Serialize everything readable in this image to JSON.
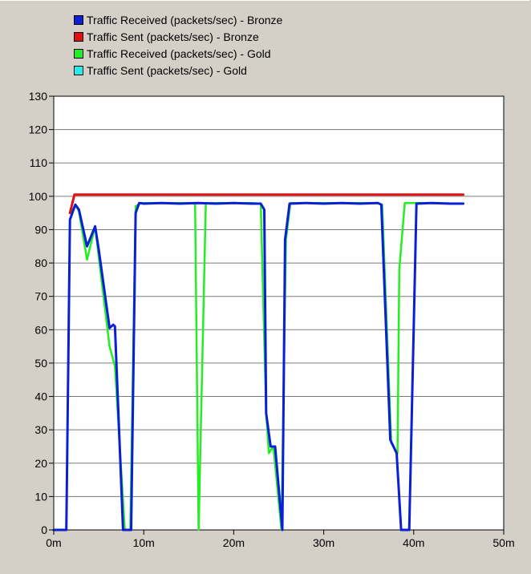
{
  "chart_data": {
    "type": "line",
    "title": "",
    "xlabel": "",
    "ylabel": "",
    "x_unit": "minutes",
    "xlim": [
      0,
      50
    ],
    "ylim": [
      0,
      130
    ],
    "x_ticks": [
      0,
      10,
      20,
      30,
      40,
      50
    ],
    "x_tick_labels": [
      "0m",
      "10m",
      "20m",
      "30m",
      "40m",
      "50m"
    ],
    "y_ticks": [
      0,
      10,
      20,
      30,
      40,
      50,
      60,
      70,
      80,
      90,
      100,
      110,
      120,
      130
    ],
    "y_tick_labels": [
      "0",
      "10",
      "20",
      "30",
      "40",
      "50",
      "60",
      "70",
      "80",
      "90",
      "100",
      "110",
      "120",
      "130"
    ],
    "grid": true,
    "legend_position": "top-left",
    "series": [
      {
        "name": "Traffic Received (packets/sec) - Bronze",
        "color": "#0a1fd6",
        "width": 3,
        "points": [
          [
            0,
            0
          ],
          [
            1.4,
            0
          ],
          [
            1.8,
            93
          ],
          [
            2.4,
            97.5
          ],
          [
            2.8,
            96
          ],
          [
            3.7,
            85
          ],
          [
            4.6,
            91
          ],
          [
            5,
            84
          ],
          [
            6.2,
            60.5
          ],
          [
            6.6,
            61.5
          ],
          [
            6.8,
            61
          ],
          [
            7.7,
            0
          ],
          [
            8.6,
            0
          ],
          [
            9.1,
            95
          ],
          [
            9.5,
            98
          ],
          [
            10,
            97.8
          ],
          [
            12,
            98
          ],
          [
            14,
            97.8
          ],
          [
            16,
            98
          ],
          [
            18,
            97.8
          ],
          [
            20,
            98
          ],
          [
            22,
            97.8
          ],
          [
            23,
            97.8
          ],
          [
            23.4,
            96
          ],
          [
            23.6,
            35
          ],
          [
            24.1,
            25
          ],
          [
            24.6,
            25
          ],
          [
            25.4,
            0
          ],
          [
            25.7,
            87
          ],
          [
            26.2,
            97.8
          ],
          [
            28,
            98
          ],
          [
            30,
            97.8
          ],
          [
            32,
            98
          ],
          [
            34,
            97.8
          ],
          [
            36,
            98
          ],
          [
            36.4,
            97.5
          ],
          [
            37.4,
            27
          ],
          [
            38.1,
            23
          ],
          [
            38.6,
            0
          ],
          [
            39.5,
            0
          ],
          [
            40.3,
            97.8
          ],
          [
            42,
            98
          ],
          [
            44,
            97.8
          ],
          [
            45.5,
            97.8
          ]
        ]
      },
      {
        "name": "Traffic Sent (packets/sec) - Bronze",
        "color": "#e01010",
        "width": 3,
        "points": [
          [
            1.8,
            95
          ],
          [
            2.3,
            100.5
          ],
          [
            45.5,
            100.5
          ]
        ]
      },
      {
        "name": "Traffic Received (packets/sec) - Gold",
        "color": "#22ee22",
        "width": 2.5,
        "points": [
          [
            1.9,
            95
          ],
          [
            2.4,
            97.5
          ],
          [
            2.8,
            95.5
          ],
          [
            3.7,
            81
          ],
          [
            4.6,
            91
          ],
          [
            5.3,
            75
          ],
          [
            6.2,
            55
          ],
          [
            6.8,
            49
          ],
          [
            7.9,
            0
          ],
          [
            8.5,
            0
          ],
          [
            9.1,
            97
          ],
          [
            9.7,
            98
          ],
          [
            12,
            98
          ],
          [
            15,
            98
          ],
          [
            15.7,
            97.8
          ],
          [
            16.1,
            0
          ],
          [
            16.9,
            98
          ],
          [
            18,
            98
          ],
          [
            20,
            98
          ],
          [
            22,
            98
          ],
          [
            23,
            97.8
          ],
          [
            23.6,
            35
          ],
          [
            23.9,
            23
          ],
          [
            24.4,
            25
          ],
          [
            25.3,
            0
          ],
          [
            25.8,
            87
          ],
          [
            26.3,
            98
          ],
          [
            30,
            98
          ],
          [
            34,
            98
          ],
          [
            36,
            98
          ],
          [
            36.5,
            97.5
          ],
          [
            37.5,
            26
          ],
          [
            38.2,
            23
          ],
          [
            38.4,
            78
          ],
          [
            39,
            98
          ],
          [
            40,
            98
          ],
          [
            42,
            98
          ],
          [
            45.5,
            97.8
          ]
        ]
      },
      {
        "name": "Traffic Sent (packets/sec) - Gold",
        "color": "#22eeee",
        "width": 1.5,
        "points": []
      }
    ]
  }
}
